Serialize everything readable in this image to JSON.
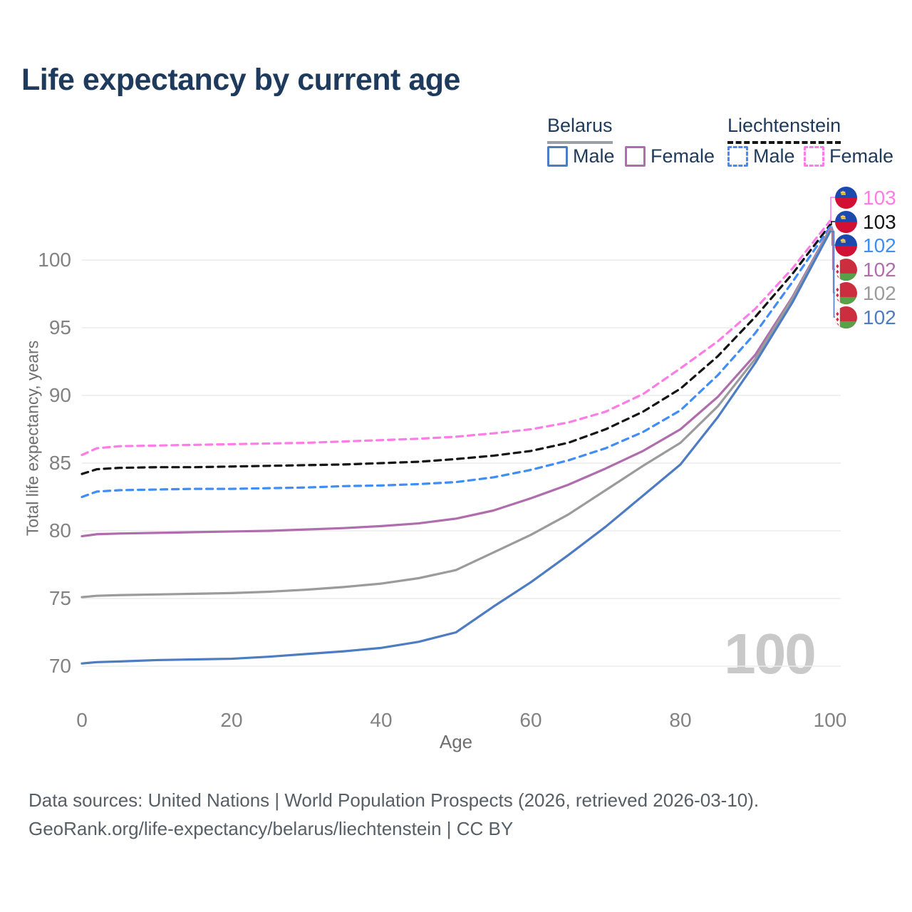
{
  "title": "Life expectancy by current age",
  "legend": {
    "groups": [
      {
        "name": "Belarus",
        "style": "solid",
        "items": [
          {
            "label": "Male",
            "color": "#4d7cc2"
          },
          {
            "label": "Female",
            "color": "#b06dad"
          }
        ]
      },
      {
        "name": "Liechtenstein",
        "style": "dashed",
        "items": [
          {
            "label": "Male",
            "color": "#3f8df5"
          },
          {
            "label": "Female",
            "color": "#ff7ce6"
          }
        ]
      }
    ]
  },
  "watermark_age": "100",
  "chart_data": {
    "type": "line",
    "title": "Life expectancy by current age",
    "xlabel": "Age",
    "ylabel": "Total life expectancy, years",
    "x_ticks": [
      0,
      20,
      40,
      60,
      80,
      100
    ],
    "y_ticks": [
      100,
      95,
      90,
      85,
      80,
      75,
      70
    ],
    "xlim": [
      0,
      100
    ],
    "ylim": [
      68,
      104
    ],
    "grid": true,
    "legend_position": "top-right",
    "x": [
      0,
      2,
      5,
      10,
      15,
      20,
      25,
      30,
      35,
      40,
      45,
      50,
      55,
      60,
      65,
      70,
      75,
      80,
      85,
      90,
      95,
      100
    ],
    "series": [
      {
        "id": "liechtenstein-female",
        "name": "Liechtenstein Female",
        "country": "liechtenstein",
        "dash": true,
        "color": "#ff7ce6",
        "end_label": "103",
        "values": [
          85.6,
          86.1,
          86.25,
          86.3,
          86.35,
          86.4,
          86.45,
          86.5,
          86.6,
          86.7,
          86.8,
          86.95,
          87.2,
          87.5,
          88.0,
          88.8,
          90.1,
          92.0,
          94.0,
          96.4,
          99.4,
          102.9
        ]
      },
      {
        "id": "liechtenstein-total",
        "name": "Liechtenstein",
        "country": "liechtenstein",
        "dash": true,
        "color": "#141414",
        "end_label": "103",
        "values": [
          84.2,
          84.55,
          84.65,
          84.7,
          84.7,
          84.75,
          84.8,
          84.85,
          84.9,
          85.0,
          85.1,
          85.3,
          85.55,
          85.9,
          86.5,
          87.5,
          88.8,
          90.5,
          92.9,
          95.8,
          99.0,
          102.6
        ]
      },
      {
        "id": "liechtenstein-male",
        "name": "Liechtenstein Male",
        "country": "liechtenstein",
        "dash": true,
        "color": "#3f8df5",
        "end_label": "102",
        "values": [
          82.5,
          82.9,
          83.0,
          83.05,
          83.1,
          83.1,
          83.15,
          83.2,
          83.3,
          83.35,
          83.45,
          83.6,
          83.95,
          84.5,
          85.2,
          86.1,
          87.3,
          88.9,
          91.5,
          94.6,
          98.4,
          102.45
        ]
      },
      {
        "id": "belarus-female",
        "name": "Belarus Female",
        "country": "belarus",
        "dash": false,
        "color": "#b06dad",
        "end_label": "102",
        "values": [
          79.6,
          79.75,
          79.8,
          79.85,
          79.9,
          79.95,
          80.0,
          80.1,
          80.2,
          80.35,
          80.55,
          80.9,
          81.5,
          82.4,
          83.4,
          84.6,
          85.9,
          87.5,
          89.9,
          93.0,
          97.3,
          102.3
        ]
      },
      {
        "id": "belarus-total",
        "name": "Belarus",
        "country": "belarus",
        "dash": false,
        "color": "#9b9b9b",
        "end_label": "102",
        "values": [
          75.1,
          75.2,
          75.25,
          75.3,
          75.35,
          75.4,
          75.5,
          75.65,
          75.85,
          76.1,
          76.5,
          77.1,
          78.4,
          79.7,
          81.2,
          83.0,
          84.8,
          86.5,
          89.2,
          92.7,
          97.2,
          102.2
        ]
      },
      {
        "id": "belarus-male",
        "name": "Belarus Male",
        "country": "belarus",
        "dash": false,
        "color": "#4d7cc2",
        "end_label": "102",
        "values": [
          70.2,
          70.3,
          70.35,
          70.45,
          70.5,
          70.55,
          70.7,
          70.9,
          71.1,
          71.35,
          71.8,
          72.5,
          74.4,
          76.2,
          78.2,
          80.3,
          82.6,
          84.9,
          88.4,
          92.4,
          96.9,
          102.1
        ]
      }
    ]
  },
  "footer": {
    "line1": "Data sources: United Nations | World Population Prospects (2026, retrieved 2026-03-10).",
    "line2": "GeoRank.org/life-expectancy/belarus/liechtenstein | CC BY"
  },
  "colors": {
    "title_text": "#1e3a5c",
    "tick_text": "#828282",
    "axis_title_text": "#6f6f6f",
    "gridline": "#ececec",
    "watermark": "#c9c9c9",
    "footer_text": "#575f66"
  }
}
